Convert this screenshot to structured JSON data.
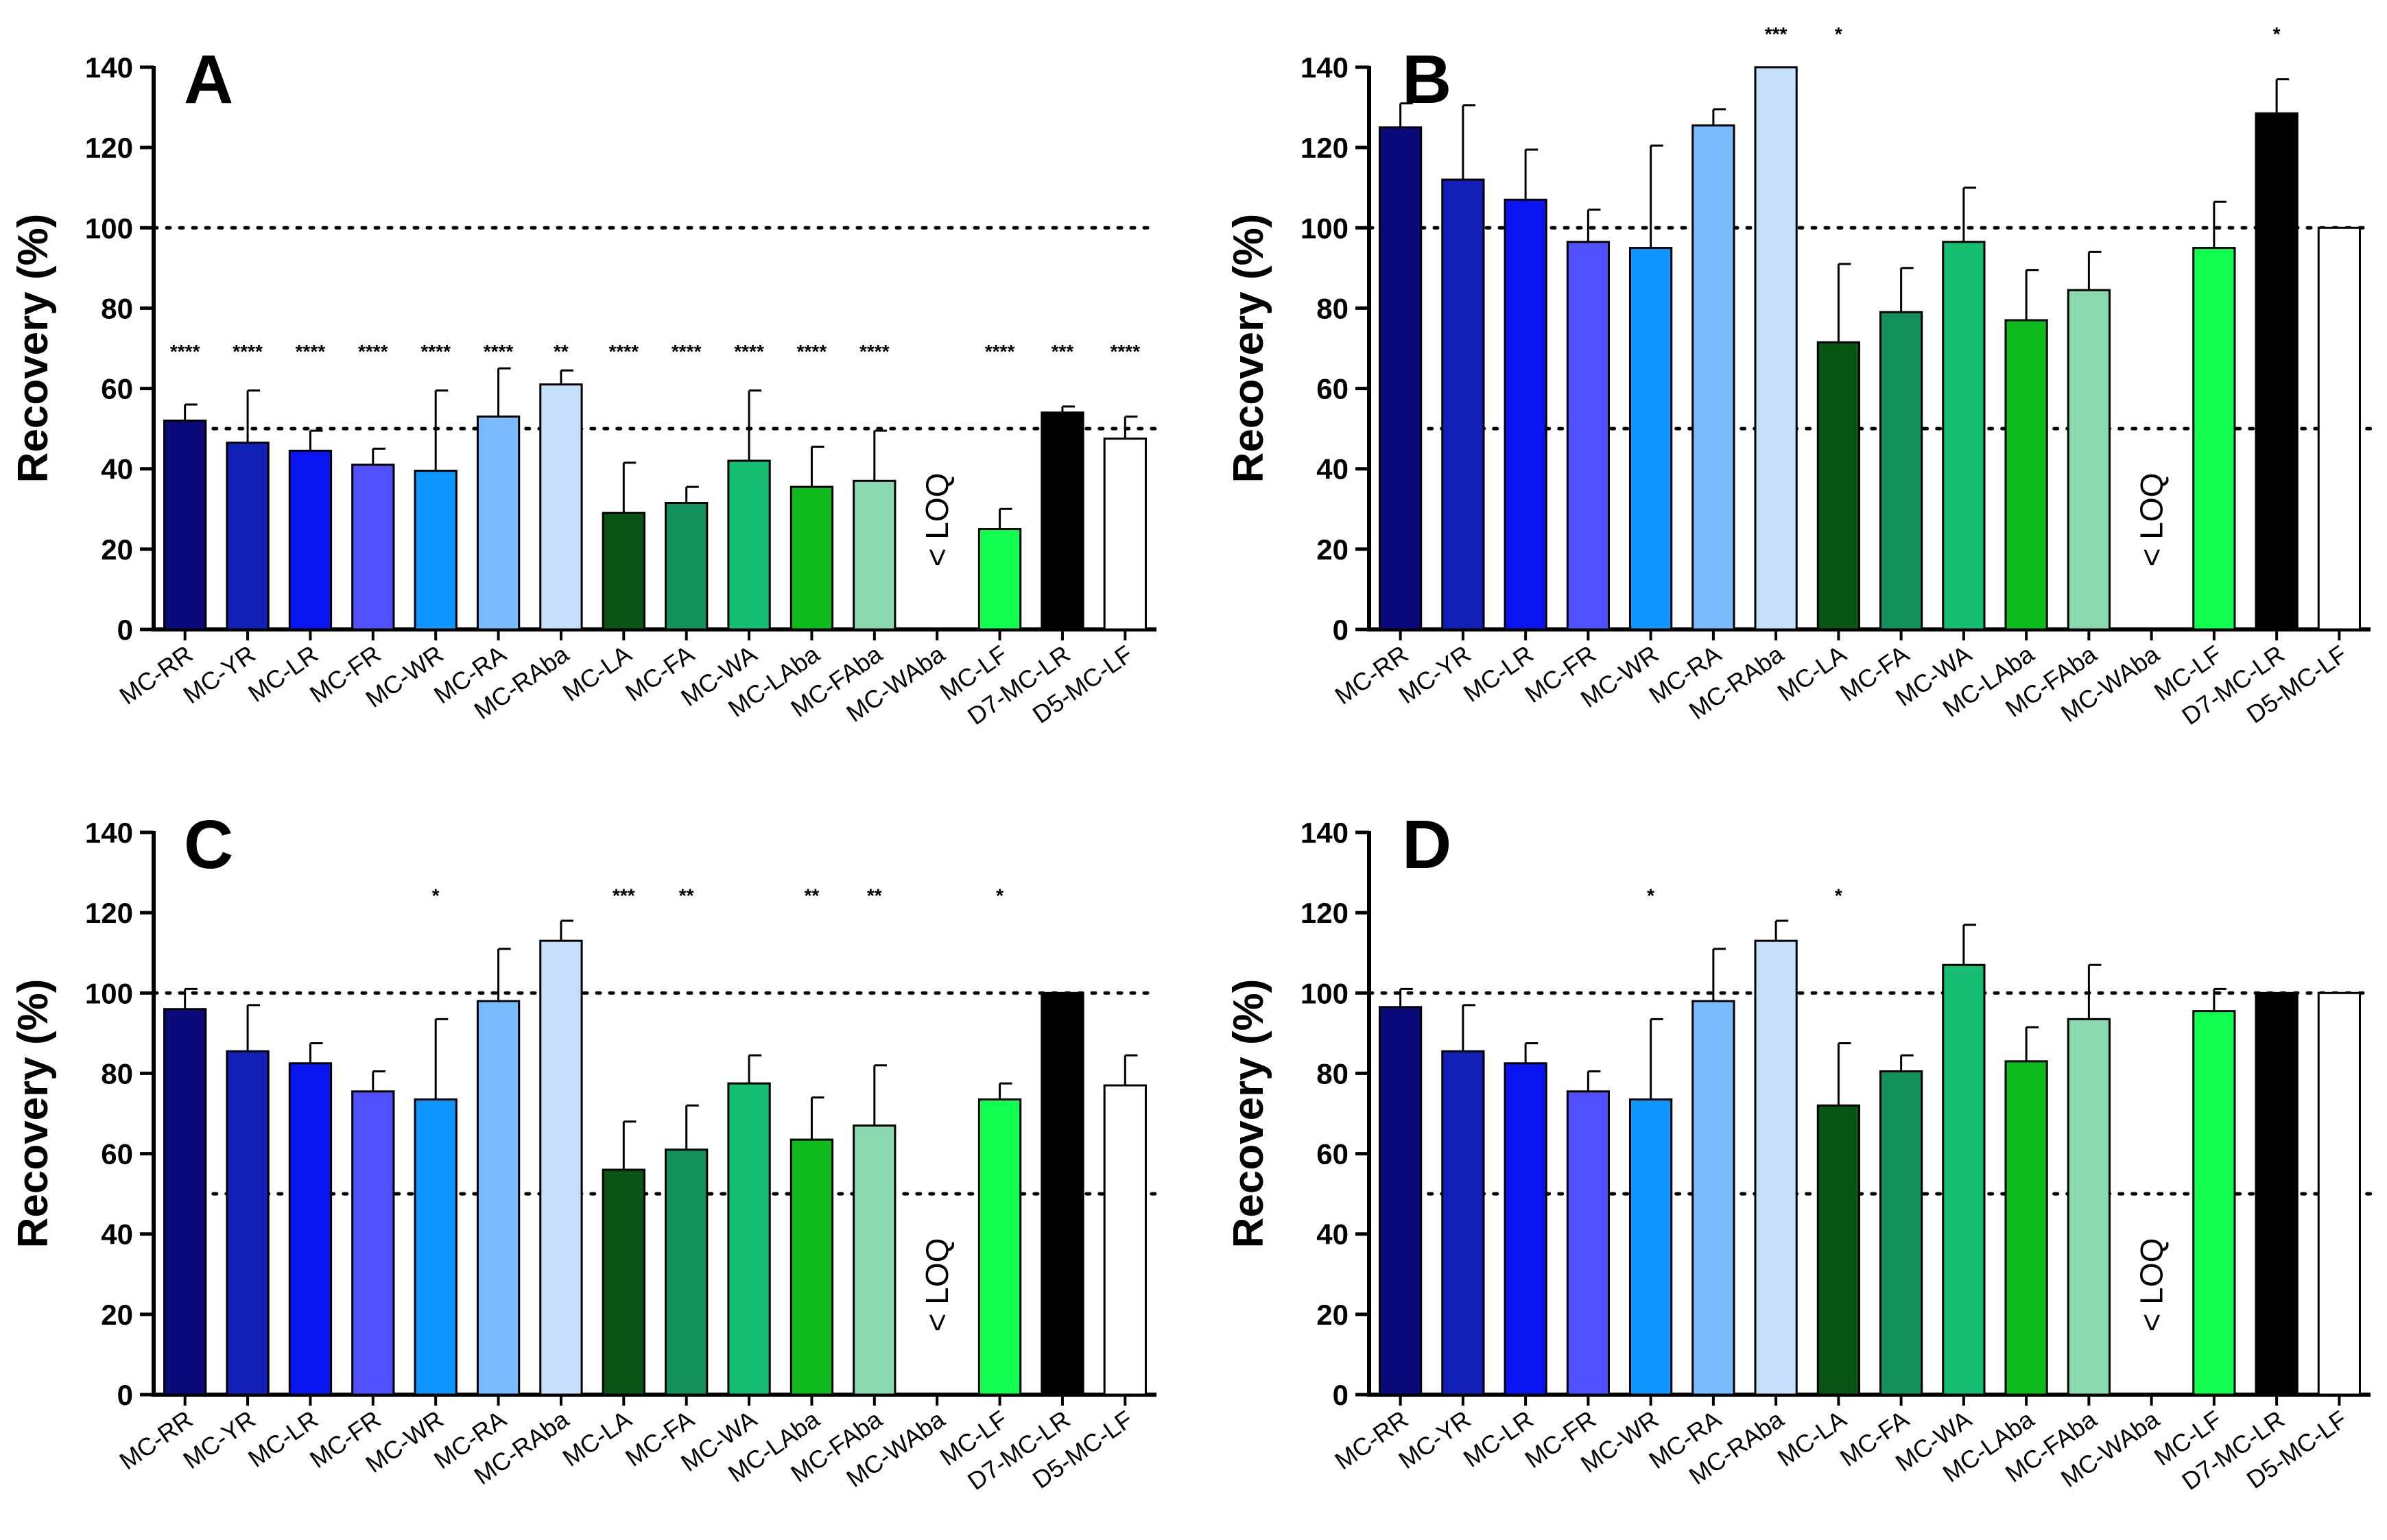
{
  "chart_data": [
    {
      "type": "bar",
      "panel_label": "A",
      "ylabel": "Recovery (%)",
      "ylim": [
        0,
        140
      ],
      "yticks": [
        "0",
        "20",
        "40",
        "60",
        "80",
        "100",
        "120",
        "140"
      ],
      "reference_lines": [
        50,
        100
      ],
      "categories": [
        "MC-RR",
        "MC-YR",
        "MC-LR",
        "MC-FR",
        "MC-WR",
        "MC-RA",
        "MC-RAba",
        "MC-LA",
        "MC-FA",
        "MC-WA",
        "MC-LAba",
        "MC-FAba",
        "MC-WAba",
        "MC-LF",
        "D7-MC-LR",
        "D5-MC-LF"
      ],
      "values": [
        52,
        46.5,
        44.5,
        41,
        39.5,
        53,
        61,
        29,
        31.5,
        42,
        35.5,
        37,
        null,
        25,
        54,
        47.5
      ],
      "errors": [
        4,
        13,
        5,
        4,
        20,
        12,
        3.5,
        12.5,
        4,
        17.5,
        10,
        12.5,
        null,
        5,
        1.5,
        5.5
      ],
      "significance": [
        "****",
        "****",
        "****",
        "****",
        "****",
        "****",
        "**",
        "****",
        "****",
        "****",
        "****",
        "****",
        "",
        "****",
        "***",
        "****"
      ],
      "sig_y": 69,
      "loq_label": "< LOQ",
      "loq_index": 12
    },
    {
      "type": "bar",
      "panel_label": "B",
      "ylabel": "Recovery (%)",
      "ylim": [
        0,
        140
      ],
      "yticks": [
        "0",
        "20",
        "40",
        "60",
        "80",
        "100",
        "120",
        "140"
      ],
      "reference_lines": [
        50,
        100
      ],
      "categories": [
        "MC-RR",
        "MC-YR",
        "MC-LR",
        "MC-FR",
        "MC-WR",
        "MC-RA",
        "MC-RAba",
        "MC-LA",
        "MC-FA",
        "MC-WA",
        "MC-LAba",
        "MC-FAba",
        "MC-WAba",
        "MC-LF",
        "D7-MC-LR",
        "D5-MC-LF"
      ],
      "values": [
        125,
        112,
        107,
        96.5,
        95,
        125.5,
        140,
        71.5,
        79,
        96.5,
        77,
        84.5,
        null,
        95,
        128.5,
        100
      ],
      "errors": [
        6,
        18.5,
        12.5,
        8,
        25.5,
        4,
        0,
        19.5,
        11,
        13.5,
        12.5,
        9.5,
        null,
        11.5,
        8.5,
        0
      ],
      "significance": [
        "",
        "",
        "",
        "",
        "",
        "",
        "***",
        "*",
        "",
        "",
        "",
        "",
        "",
        "",
        "*",
        ""
      ],
      "sig_y": 148,
      "loq_label": "< LOQ",
      "loq_index": 12
    },
    {
      "type": "bar",
      "panel_label": "C",
      "ylabel": "Recovery (%)",
      "ylim": [
        0,
        140
      ],
      "yticks": [
        "0",
        "20",
        "40",
        "60",
        "80",
        "100",
        "120",
        "140"
      ],
      "reference_lines": [
        50,
        100
      ],
      "categories": [
        "MC-RR",
        "MC-YR",
        "MC-LR",
        "MC-FR",
        "MC-WR",
        "MC-RA",
        "MC-RAba",
        "MC-LA",
        "MC-FA",
        "MC-WA",
        "MC-LAba",
        "MC-FAba",
        "MC-WAba",
        "MC-LF",
        "D7-MC-LR",
        "D5-MC-LF"
      ],
      "values": [
        96,
        85.5,
        82.5,
        75.5,
        73.5,
        98,
        113,
        56,
        61,
        77.5,
        63.5,
        67,
        null,
        73.5,
        100,
        77
      ],
      "errors": [
        5,
        11.5,
        5,
        5,
        20,
        13,
        5,
        12,
        11,
        7,
        10.5,
        15,
        null,
        4,
        0,
        7.5
      ],
      "significance": [
        "",
        "",
        "",
        "",
        "*",
        "",
        "",
        "***",
        "**",
        "",
        "**",
        "**",
        "",
        "*",
        "",
        ""
      ],
      "sig_y": 124,
      "loq_label": "< LOQ",
      "loq_index": 12
    },
    {
      "type": "bar",
      "panel_label": "D",
      "ylabel": "Recovery (%)",
      "ylim": [
        0,
        140
      ],
      "yticks": [
        "0",
        "20",
        "40",
        "60",
        "80",
        "100",
        "120",
        "140"
      ],
      "reference_lines": [
        50,
        100
      ],
      "categories": [
        "MC-RR",
        "MC-YR",
        "MC-LR",
        "MC-FR",
        "MC-WR",
        "MC-RA",
        "MC-RAba",
        "MC-LA",
        "MC-FA",
        "MC-WA",
        "MC-LAba",
        "MC-FAba",
        "MC-WAba",
        "MC-LF",
        "D7-MC-LR",
        "D5-MC-LF"
      ],
      "values": [
        96.5,
        85.5,
        82.5,
        75.5,
        73.5,
        98,
        113,
        72,
        80.5,
        107,
        83,
        93.5,
        null,
        95.5,
        100,
        100
      ],
      "errors": [
        4.5,
        11.5,
        5,
        5,
        20,
        13,
        5,
        15.5,
        4,
        10,
        8.5,
        13.5,
        null,
        5.5,
        0,
        0
      ],
      "significance": [
        "",
        "",
        "",
        "",
        "*",
        "",
        "",
        "*",
        "",
        "",
        "",
        "",
        "",
        "",
        "",
        ""
      ],
      "sig_y": 124,
      "loq_label": "< LOQ",
      "loq_index": 12
    }
  ],
  "colors": [
    "#0a0a7a",
    "#0f1fb8",
    "#0a14f0",
    "#5050ff",
    "#0f96ff",
    "#78bcff",
    "#c6e0fb",
    "#0a5414",
    "#11905c",
    "#16be72",
    "#0fbb1c",
    "#8ad9ae",
    "#ffffff",
    "#11ff50",
    "#000000",
    "#ffffff"
  ]
}
